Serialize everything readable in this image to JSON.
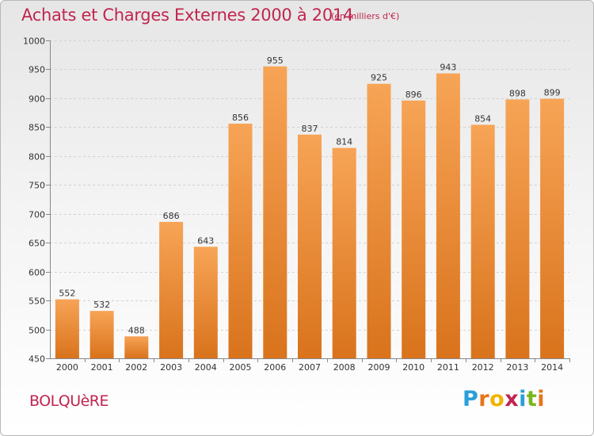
{
  "header": {
    "title": "Achats et Charges Externes 2000 à 2014",
    "unit": "(en milliers d'€)"
  },
  "footer": {
    "commune": "BOLQUèRE",
    "logo_letters": [
      "P",
      "r",
      "o",
      "x",
      "i",
      "t",
      "i"
    ],
    "logo_colors": [
      "#2a9fd8",
      "#e8731a",
      "#f0b400",
      "#c0254f",
      "#2a9fd8",
      "#7ab51d",
      "#e8731a"
    ]
  },
  "chart_data": {
    "type": "bar",
    "title": "Achats et Charges Externes 2000 à 2014",
    "xlabel": "",
    "ylabel": "",
    "categories": [
      "2000",
      "2001",
      "2002",
      "2003",
      "2004",
      "2005",
      "2006",
      "2007",
      "2008",
      "2009",
      "2010",
      "2011",
      "2012",
      "2013",
      "2014"
    ],
    "values": [
      552,
      532,
      488,
      686,
      643,
      856,
      955,
      837,
      814,
      925,
      896,
      943,
      854,
      898,
      899
    ],
    "ylim": [
      450,
      1000
    ],
    "yticks": [
      450,
      500,
      550,
      600,
      650,
      700,
      750,
      800,
      850,
      900,
      950,
      1000
    ],
    "grid": true,
    "bar_color_top": "#f7a456",
    "bar_color_bottom": "#d9731c"
  }
}
